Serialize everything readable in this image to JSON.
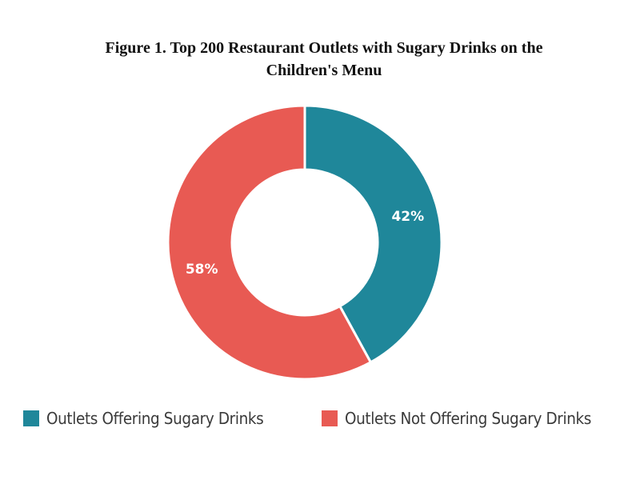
{
  "title": {
    "line1": "Figure 1. Top 200 Restaurant Outlets with Sugary Drinks on the",
    "line2": "Children's Menu"
  },
  "colors": {
    "offering": "#1F879A",
    "not_offering": "#E85A53",
    "background": "#FFFFFF"
  },
  "legend": {
    "items": [
      {
        "label": "Outlets Offering Sugary Drinks",
        "color": "#1F879A"
      },
      {
        "label": "Outlets Not Offering Sugary Drinks",
        "color": "#E85A53"
      }
    ]
  },
  "chart_data": {
    "type": "pie",
    "subtype": "donut",
    "title": "Figure 1. Top 200 Restaurant Outlets with Sugary Drinks on the Children's Menu",
    "categories": [
      "Outlets Offering Sugary Drinks",
      "Outlets Not Offering Sugary Drinks"
    ],
    "values": [
      42,
      58
    ],
    "unit": "%",
    "data_labels": [
      "42%",
      "58%"
    ],
    "colors": [
      "#1F879A",
      "#E85A53"
    ],
    "start_angle": "12 o'clock, clockwise",
    "legend_position": "bottom"
  }
}
